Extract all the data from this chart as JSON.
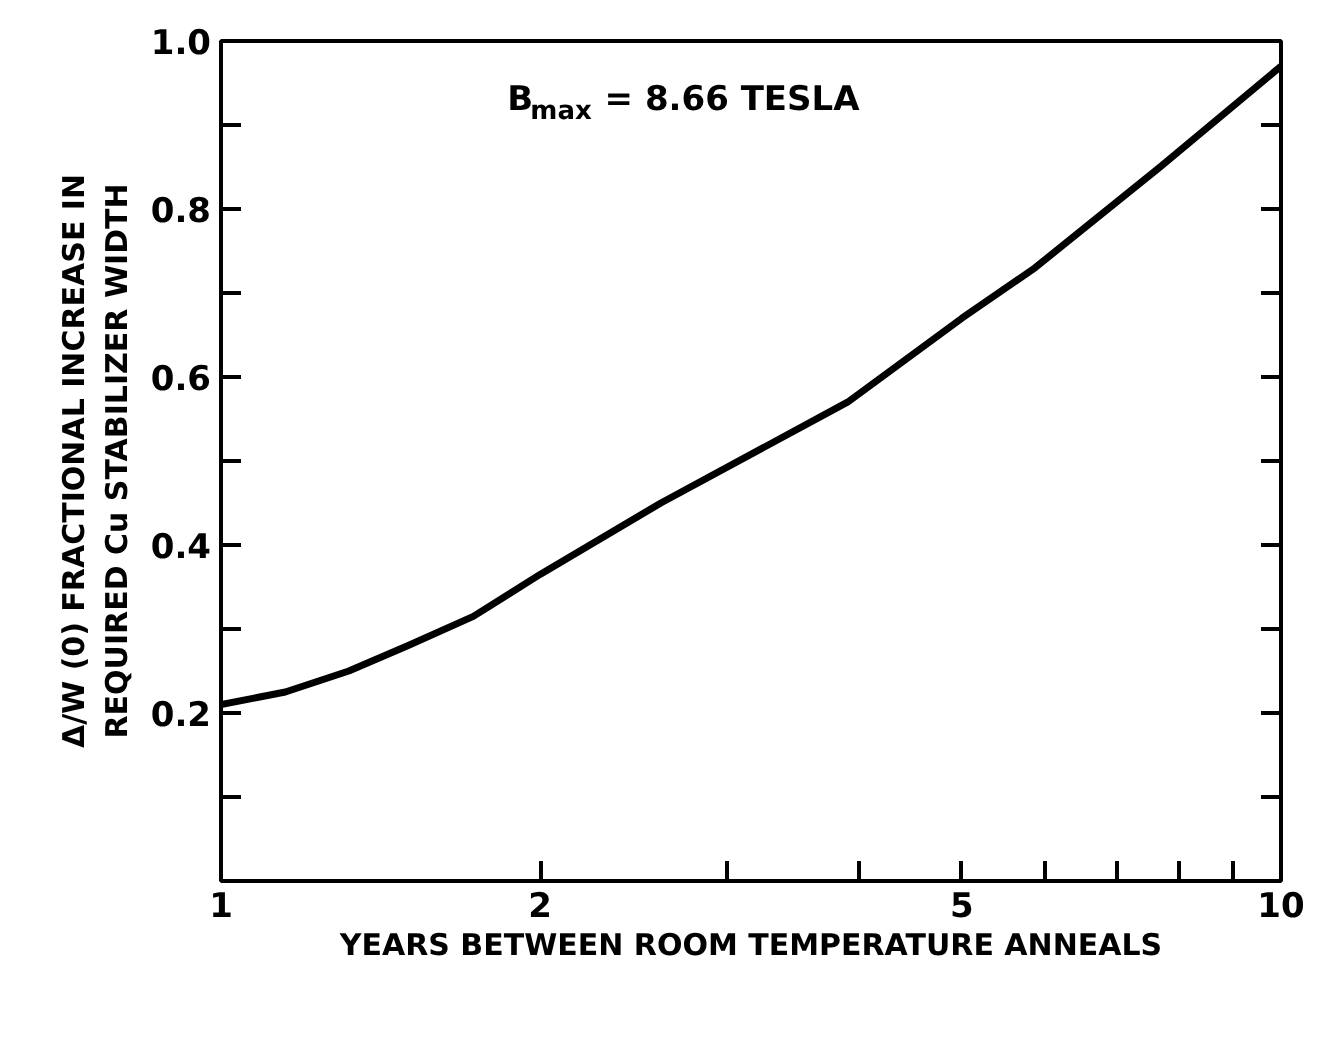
{
  "chart_data": {
    "type": "line",
    "xlabel": "YEARS BETWEEN ROOM TEMPERATURE ANNEALS",
    "ylabel": "Δ/W (0) FRACTIONAL INCREASE IN\nREQUIRED Cu STABILIZER WIDTH",
    "annotations": [
      "B$_{max}$ = 8.66 TESLA"
    ],
    "log": "x",
    "xlim": [
      1,
      10
    ],
    "ylim": [
      0,
      1.0
    ],
    "xticks": [
      1,
      2,
      {
        "value": 3,
        "label": null
      },
      {
        "value": 4,
        "label": null
      },
      5,
      {
        "value": 6,
        "label": null
      },
      {
        "value": 7,
        "label": null
      },
      {
        "value": 8,
        "label": null
      },
      {
        "value": 9,
        "label": null
      },
      10
    ],
    "yticks": [
      {
        "value": 0,
        "label": null
      },
      {
        "value": 0.1,
        "label": null
      },
      0.2,
      {
        "value": 0.3,
        "label": null
      },
      0.4,
      {
        "value": 0.5,
        "label": null
      },
      0.6,
      {
        "value": 0.7,
        "label": null
      },
      0.8,
      {
        "value": 0.9,
        "label": null
      },
      {
        "value": 1.0,
        "label": "1.0"
      }
    ],
    "x": [
      1,
      1.15,
      1.32,
      1.5,
      1.73,
      2,
      2.6,
      3.9,
      5,
      5.86,
      7.69,
      10
    ],
    "series": [
      {
        "color": "#000000",
        "values": [
          0.21,
          0.225,
          0.25,
          0.28,
          0.315,
          0.365,
          0.45,
          0.57,
          0.67,
          0.73,
          0.85,
          0.97
        ]
      }
    ],
    "grid": false,
    "marker": "none",
    "line_style": "solid"
  }
}
